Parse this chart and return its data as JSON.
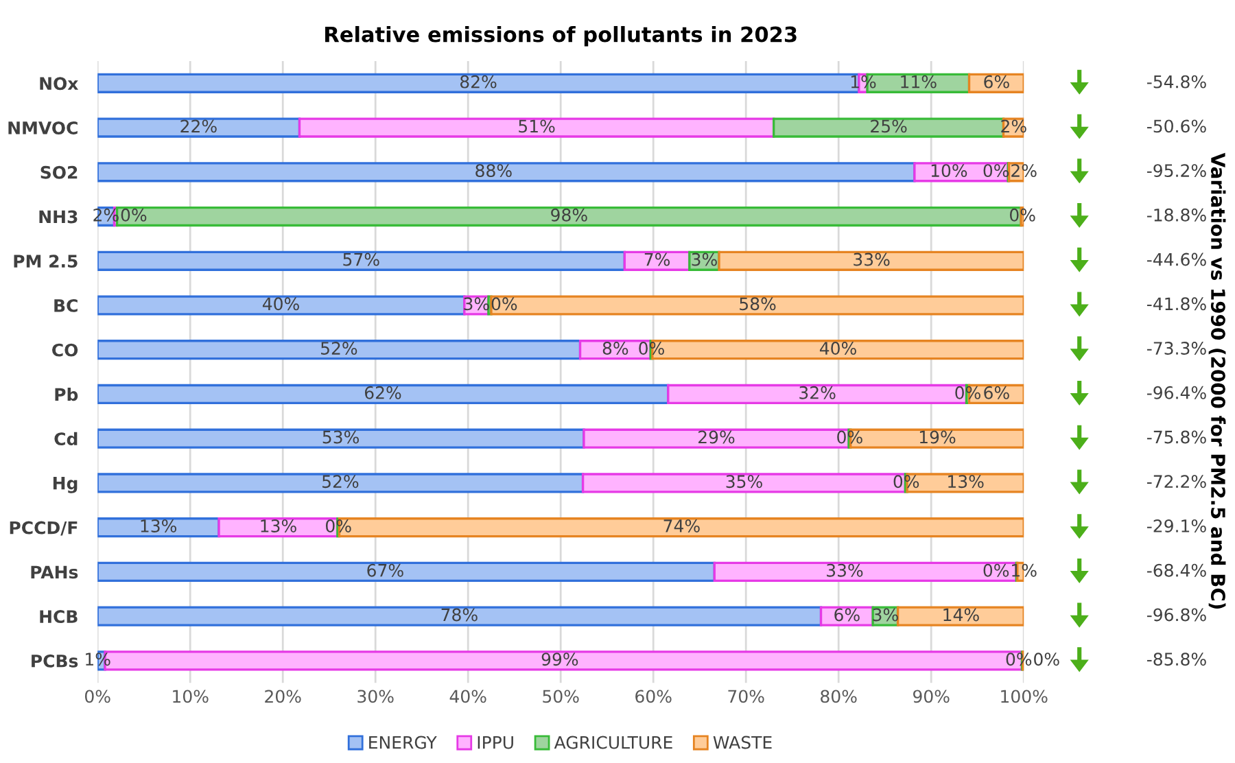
{
  "chart_data": {
    "type": "bar",
    "orientation": "horizontal",
    "stacked": true,
    "title": "Relative emissions of pollutants in 2023",
    "categories": [
      "NOx",
      "NMVOC",
      "SO2",
      "NH3",
      "PM 2.5",
      "BC",
      "CO",
      "Pb",
      "Cd",
      "Hg",
      "PCCD/F",
      "PAHs",
      "HCB",
      "PCBs"
    ],
    "series": [
      {
        "name": "ENERGY",
        "color": "#a4c2f4",
        "values": [
          82.2,
          21.8,
          88.2,
          1.8,
          56.9,
          39.6,
          52.1,
          61.6,
          52.5,
          52.4,
          13.1,
          66.6,
          78.1,
          0.8
        ],
        "value_labels": [
          "82%",
          "22%",
          "88%",
          "2%",
          "57%",
          "40%",
          "52%",
          "62%",
          "53%",
          "52%",
          "13%",
          "67%",
          "78%",
          "1%"
        ]
      },
      {
        "name": "IPPU",
        "color": "#ffb3ff",
        "values": [
          0.9,
          51.2,
          10.1,
          0.3,
          7.0,
          2.6,
          7.6,
          32.2,
          28.6,
          34.8,
          12.8,
          32.6,
          5.6,
          99.0
        ],
        "value_labels": [
          "1%",
          "51%",
          "10%",
          "0%",
          "7%",
          "3%",
          "8%",
          "32%",
          "29%",
          "35%",
          "13%",
          "33%",
          "6%",
          "99%"
        ]
      },
      {
        "name": "AGRICULTURE",
        "color": "#9fd49f",
        "values": [
          11.0,
          24.8,
          0.1,
          97.6,
          3.2,
          0.3,
          0.2,
          0.3,
          0.2,
          0.2,
          0.2,
          0.1,
          2.7,
          0.1
        ],
        "value_labels": [
          "11%",
          "25%",
          "0%",
          "98%",
          "3%",
          "0%",
          "0%",
          "0%",
          "0%",
          "0%",
          "0%",
          "0%",
          "3%",
          "0%"
        ]
      },
      {
        "name": "WASTE",
        "color": "#ffcc99",
        "values": [
          5.9,
          2.2,
          1.6,
          0.3,
          32.9,
          57.5,
          40.1,
          5.9,
          18.7,
          12.6,
          73.9,
          0.7,
          13.6,
          0.1
        ],
        "value_labels": [
          "6%",
          "2%",
          "2%",
          "0%",
          "33%",
          "58%",
          "40%",
          "6%",
          "19%",
          "13%",
          "74%",
          "1%",
          "14%",
          "0%"
        ]
      }
    ],
    "xlim": [
      0,
      100
    ],
    "xticks": [
      {
        "value": 0,
        "label": "0%"
      },
      {
        "value": 10,
        "label": "10%"
      },
      {
        "value": 20,
        "label": "20%"
      },
      {
        "value": 30,
        "label": "30%"
      },
      {
        "value": 40,
        "label": "40%"
      },
      {
        "value": 50,
        "label": "50%"
      },
      {
        "value": 60,
        "label": "60%"
      },
      {
        "value": 70,
        "label": "70%"
      },
      {
        "value": 80,
        "label": "80%"
      },
      {
        "value": 90,
        "label": "90%"
      },
      {
        "value": 100,
        "label": "100%"
      }
    ],
    "grid": "x",
    "legend": "bottom",
    "annotations": [
      "-54.8%",
      "-50.6%",
      "-95.2%",
      "-18.8%",
      "-44.6%",
      "-41.8%",
      "-73.3%",
      "-96.4%",
      "-75.8%",
      "-72.2%",
      "-29.1%",
      "-68.4%",
      "-96.8%",
      "-85.8%",
      "Variation vs 1990 (2000 for PM2.5 and BC)"
    ]
  }
}
